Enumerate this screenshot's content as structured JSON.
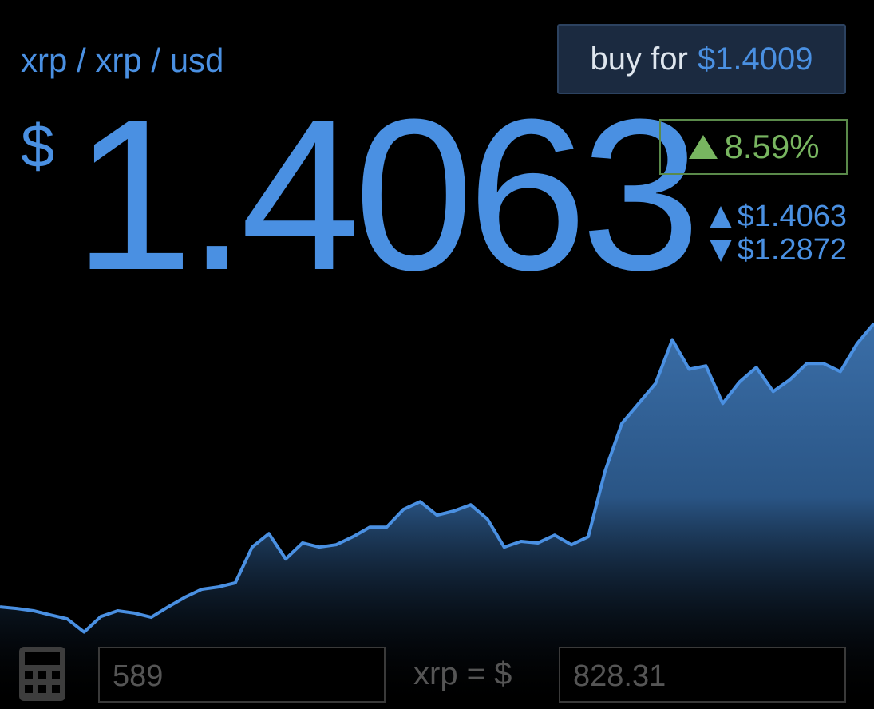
{
  "header": {
    "pair": "xrp / xrp / usd",
    "buy_label": "buy for",
    "buy_price": "$1.4009"
  },
  "price": {
    "currency": "$",
    "value": "1.4063"
  },
  "change": {
    "percent": "8.59%"
  },
  "range": {
    "high": "$1.4063",
    "low": "$1.2872"
  },
  "chart_data": {
    "type": "area",
    "color": "#4a90e2",
    "values": [
      1.2969,
      1.2963,
      1.2954,
      1.2938,
      1.2923,
      1.2872,
      1.2932,
      1.2954,
      1.2945,
      1.2929,
      1.2969,
      1.3006,
      1.3037,
      1.3046,
      1.3062,
      1.32,
      1.3252,
      1.3154,
      1.3216,
      1.32,
      1.3209,
      1.324,
      1.3277,
      1.3277,
      1.3345,
      1.3375,
      1.3323,
      1.3339,
      1.3363,
      1.3308,
      1.32,
      1.3222,
      1.3216,
      1.3246,
      1.3209,
      1.324,
      1.3493,
      1.3677,
      1.3754,
      1.3831,
      1.4,
      1.3886,
      1.3899,
      1.3754,
      1.3837,
      1.3893,
      1.38,
      1.3846,
      1.3908,
      1.3908,
      1.3877,
      1.3985,
      1.4063
    ],
    "ylim": [
      1.28,
      1.41
    ]
  },
  "converter": {
    "amount": "589",
    "unit_label": "xrp = $",
    "result": "828.31"
  }
}
